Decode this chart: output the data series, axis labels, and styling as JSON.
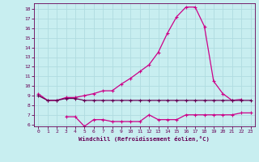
{
  "x": [
    0,
    1,
    2,
    3,
    4,
    5,
    6,
    7,
    8,
    9,
    10,
    11,
    12,
    13,
    14,
    15,
    16,
    17,
    18,
    19,
    20,
    21,
    22,
    23
  ],
  "line1": [
    9.2,
    8.5,
    8.5,
    8.8,
    8.8,
    9.0,
    9.2,
    9.5,
    9.5,
    10.2,
    10.8,
    11.5,
    12.2,
    13.5,
    15.5,
    17.2,
    18.2,
    18.2,
    16.2,
    10.5,
    9.2,
    8.5,
    8.6,
    null
  ],
  "line2": [
    9.0,
    8.5,
    8.5,
    8.7,
    8.7,
    8.5,
    8.5,
    8.5,
    8.5,
    8.5,
    8.5,
    8.5,
    8.5,
    8.5,
    8.5,
    8.5,
    8.5,
    8.5,
    8.5,
    8.5,
    8.5,
    8.5,
    8.5,
    8.5
  ],
  "line3": [
    null,
    null,
    null,
    6.8,
    6.8,
    5.8,
    6.5,
    6.5,
    6.3,
    6.3,
    6.3,
    6.3,
    7.0,
    6.5,
    6.5,
    6.5,
    7.0,
    7.0,
    7.0,
    7.0,
    7.0,
    7.0,
    7.2,
    7.2
  ],
  "color_bright": "#cc0088",
  "color_dark": "#660055",
  "bg_color": "#c8eef0",
  "grid_color": "#b0dce0",
  "tick_color": "#660055",
  "xlabel": "Windchill (Refroidissement éolien,°C)",
  "ylim": [
    5.8,
    18.6
  ],
  "xlim": [
    -0.5,
    23.5
  ],
  "yticks": [
    6,
    7,
    8,
    9,
    10,
    11,
    12,
    13,
    14,
    15,
    16,
    17,
    18
  ],
  "xticks": [
    0,
    1,
    2,
    3,
    4,
    5,
    6,
    7,
    8,
    9,
    10,
    11,
    12,
    13,
    14,
    15,
    16,
    17,
    18,
    19,
    20,
    21,
    22,
    23
  ]
}
